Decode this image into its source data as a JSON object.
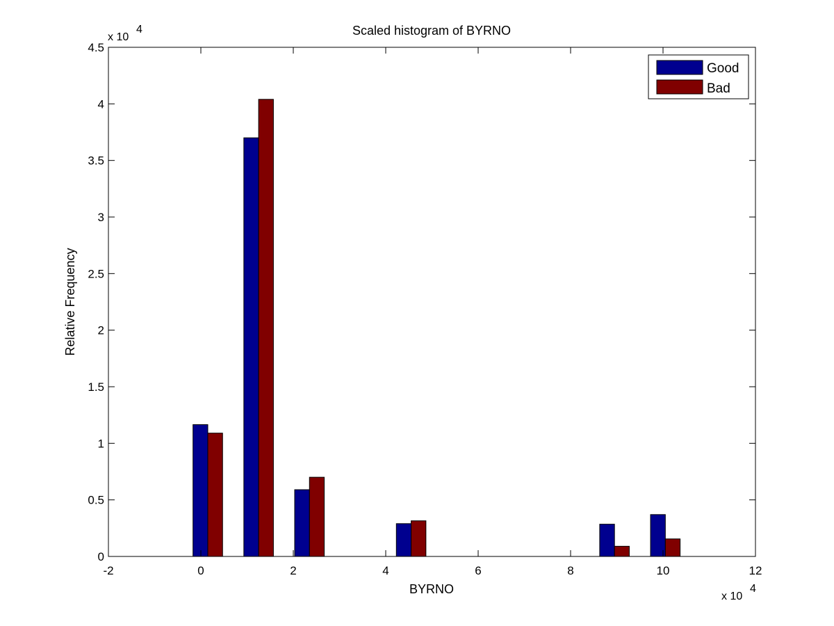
{
  "chart_data": {
    "type": "bar",
    "title": "Scaled histogram of BYRNO",
    "xlabel": "BYRNO",
    "ylabel": "Relative Frequency",
    "x_exponent_label": "x 10",
    "y_exponent_label": "x 10",
    "exponent_power": "4",
    "xlim": [
      -2,
      12
    ],
    "ylim": [
      0,
      4.5
    ],
    "x_ticks": [
      "-2",
      "0",
      "2",
      "4",
      "6",
      "8",
      "10",
      "12"
    ],
    "x_tick_values": [
      -2,
      0,
      2,
      4,
      6,
      8,
      10,
      12
    ],
    "y_ticks": [
      "0",
      "0.5",
      "1",
      "1.5",
      "2",
      "2.5",
      "3",
      "3.5",
      "4",
      "4.5"
    ],
    "y_tick_values": [
      0,
      0.5,
      1,
      1.5,
      2,
      2.5,
      3,
      3.5,
      4,
      4.5
    ],
    "bin_centers": [
      0.15,
      1.25,
      2.35,
      4.55,
      8.95,
      10.05
    ],
    "bar_width": 0.32,
    "series": [
      {
        "name": "Good",
        "color": "#00008f",
        "values": [
          1.165,
          3.7,
          0.59,
          0.29,
          0.285,
          0.37
        ]
      },
      {
        "name": "Bad",
        "color": "#800000",
        "values": [
          1.09,
          4.04,
          0.7,
          0.315,
          0.09,
          0.155
        ]
      }
    ],
    "legend_position": "top-right",
    "grid": false
  }
}
